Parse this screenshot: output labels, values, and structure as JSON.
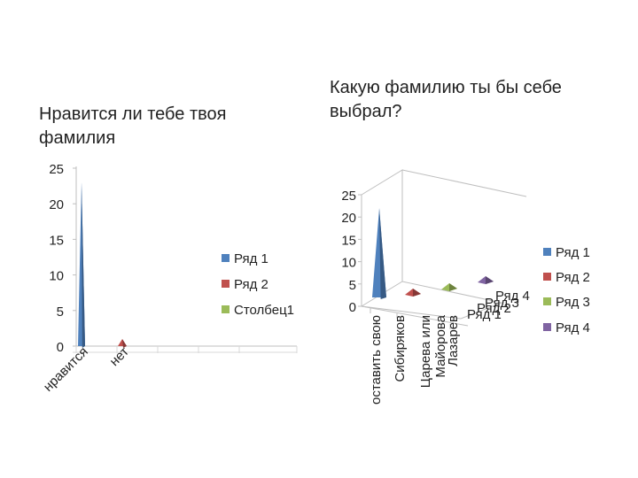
{
  "chart_data": [
    {
      "type": "bar",
      "title": "Нравится ли тебе твоя фамилия",
      "categories": [
        "нравится",
        "нет"
      ],
      "series": [
        {
          "name": "Ряд 1",
          "values": [
            23,
            0
          ]
        },
        {
          "name": "Ряд 2",
          "values": [
            0,
            1
          ]
        },
        {
          "name": "Столбец1",
          "values": [
            0,
            0
          ]
        }
      ],
      "y_ticks": [
        "0",
        "5",
        "10",
        "15",
        "20",
        "25"
      ],
      "ylim": [
        0,
        25
      ],
      "grid": false,
      "legend_position": "right",
      "colors": [
        "#4f81bd",
        "#c0504d",
        "#9bbb59"
      ]
    },
    {
      "type": "bar",
      "title": "Какую фамилию ты бы себе выбрал?",
      "categories": [
        "оставить свою",
        "Сибиряков",
        "Царева или Майорова",
        "Лазарев"
      ],
      "depth_labels": [
        "Ряд 1",
        "Ряд 2",
        "Ряд 3",
        "Ряд 4"
      ],
      "series": [
        {
          "name": "Ряд 1",
          "values": [
            22,
            0,
            0,
            0
          ]
        },
        {
          "name": "Ряд 2",
          "values": [
            0,
            1,
            0,
            0
          ]
        },
        {
          "name": "Ряд 3",
          "values": [
            0,
            0,
            1,
            0
          ]
        },
        {
          "name": "Ряд 4",
          "values": [
            0,
            0,
            0,
            1
          ]
        }
      ],
      "y_ticks": [
        "0",
        "5",
        "10",
        "15",
        "20",
        "25"
      ],
      "ylim": [
        0,
        25
      ],
      "grid": false,
      "legend_position": "right",
      "colors": [
        "#4f81bd",
        "#c0504d",
        "#9bbb59",
        "#8064a2"
      ]
    }
  ]
}
